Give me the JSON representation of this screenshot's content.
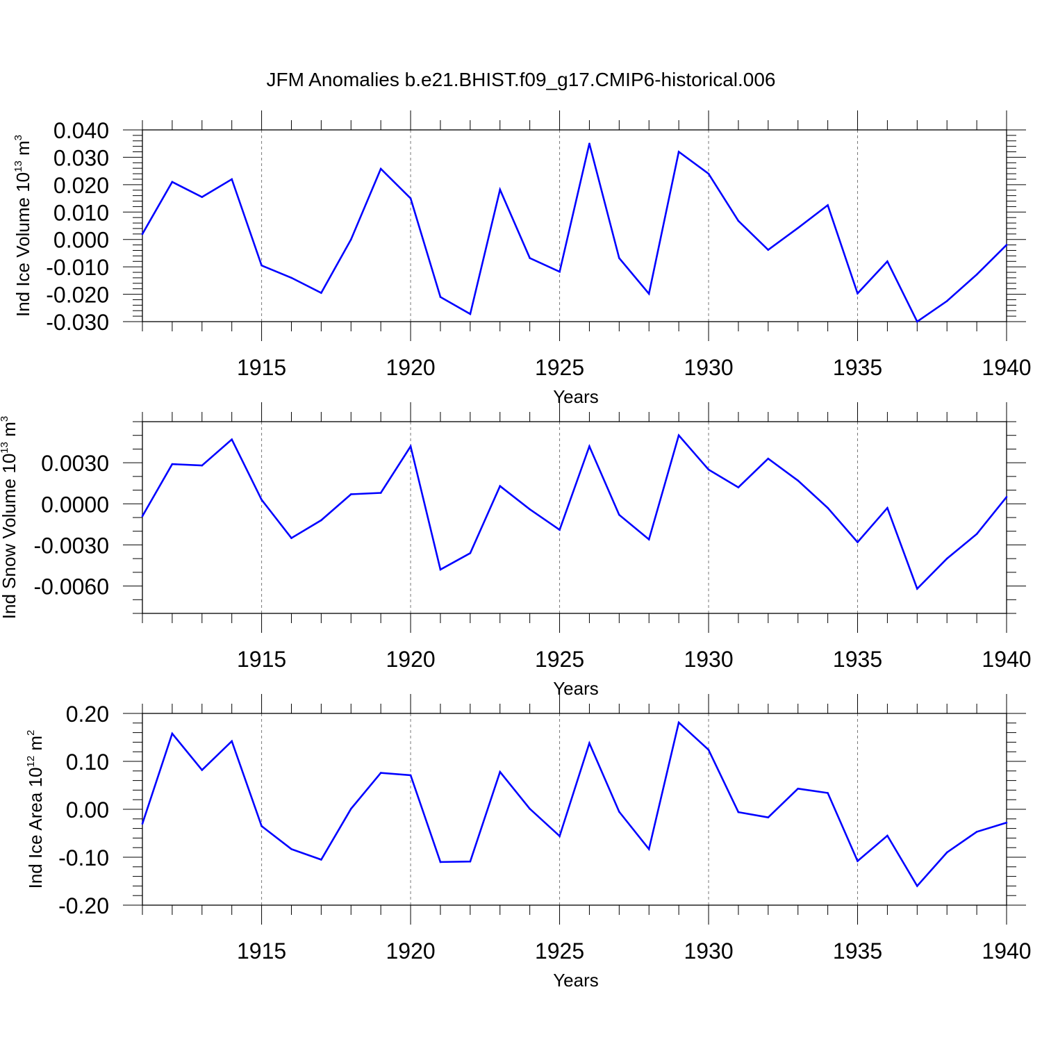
{
  "title": "JFM Anomalies b.e21.BHIST.f09_g17.CMIP6-historical.006",
  "colors": {
    "series": "#0000ff",
    "axis": "#000000",
    "grid": "#777777"
  },
  "chart_data": [
    {
      "type": "line",
      "xlabel": "Years",
      "ylabel": {
        "text": "Ind Ice Volume 10",
        "exp": "13",
        "unit": " m",
        "unit_exp": "3"
      },
      "xlim": [
        1911,
        1940
      ],
      "ylim": [
        -0.03,
        0.04
      ],
      "x_ticks": [
        "1915",
        "1920",
        "1925",
        "1930",
        "1935",
        "1940"
      ],
      "y_ticks": [
        "0.040",
        "0.030",
        "0.020",
        "0.010",
        "0.000",
        "-0.010",
        "-0.020",
        "-0.030"
      ],
      "x": [
        1911,
        1912,
        1913,
        1914,
        1915,
        1916,
        1917,
        1918,
        1919,
        1920,
        1921,
        1922,
        1923,
        1924,
        1925,
        1926,
        1927,
        1928,
        1929,
        1930,
        1931,
        1932,
        1933,
        1934,
        1935,
        1936,
        1937,
        1938,
        1939,
        1940
      ],
      "values": [
        0.002,
        0.021,
        0.0155,
        0.022,
        -0.0095,
        -0.014,
        -0.0195,
        0.0,
        0.0258,
        0.015,
        -0.021,
        -0.0272,
        0.0182,
        -0.0068,
        -0.0118,
        0.035,
        -0.0068,
        -0.0198,
        0.032,
        0.024,
        0.0068,
        -0.0038,
        0.0042,
        0.0125,
        -0.0197,
        -0.008,
        -0.03,
        -0.0225,
        -0.0128,
        -0.002
      ],
      "grid": "dashed vertical at labeled years"
    },
    {
      "type": "line",
      "xlabel": "Years",
      "ylabel": {
        "text": "Ind Snow Volume 10",
        "exp": "13",
        "unit": " m",
        "unit_exp": "3"
      },
      "xlim": [
        1911,
        1940
      ],
      "ylim": [
        -0.008,
        0.006
      ],
      "x_ticks": [
        "1915",
        "1920",
        "1925",
        "1930",
        "1935",
        "1940"
      ],
      "y_ticks": [
        "0.0030",
        "0.0000",
        "-0.0030",
        "-0.0060"
      ],
      "x": [
        1911,
        1912,
        1913,
        1914,
        1915,
        1916,
        1917,
        1918,
        1919,
        1920,
        1921,
        1922,
        1923,
        1924,
        1925,
        1926,
        1927,
        1928,
        1929,
        1930,
        1931,
        1932,
        1933,
        1934,
        1935,
        1936,
        1937,
        1938,
        1939,
        1940
      ],
      "values": [
        -0.0009,
        0.0029,
        0.0028,
        0.0047,
        0.0003,
        -0.0025,
        -0.0012,
        0.0007,
        0.0008,
        0.0042,
        -0.0048,
        -0.0036,
        0.0013,
        -0.0004,
        -0.0019,
        0.0042,
        -0.0008,
        -0.0026,
        0.005,
        0.0025,
        0.0012,
        0.0033,
        0.0017,
        -0.0003,
        -0.0028,
        -0.0003,
        -0.0062,
        -0.004,
        -0.0022,
        0.0005
      ],
      "grid": "dashed vertical at labeled years"
    },
    {
      "type": "line",
      "xlabel": "Years",
      "ylabel": {
        "text": "Ind Ice Area 10",
        "exp": "12",
        "unit": " m",
        "unit_exp": "2"
      },
      "xlim": [
        1911,
        1940
      ],
      "ylim": [
        -0.2,
        0.2
      ],
      "x_ticks": [
        "1915",
        "1920",
        "1925",
        "1930",
        "1935",
        "1940"
      ],
      "y_ticks": [
        "0.20",
        "0.10",
        "0.00",
        "-0.10",
        "-0.20"
      ],
      "x": [
        1911,
        1912,
        1913,
        1914,
        1915,
        1916,
        1917,
        1918,
        1919,
        1920,
        1921,
        1922,
        1923,
        1924,
        1925,
        1926,
        1927,
        1928,
        1929,
        1930,
        1931,
        1932,
        1933,
        1934,
        1935,
        1936,
        1937,
        1938,
        1939,
        1940
      ],
      "values": [
        -0.03,
        0.158,
        0.082,
        0.142,
        -0.035,
        -0.083,
        -0.105,
        0.001,
        0.076,
        0.071,
        -0.11,
        -0.109,
        0.078,
        0.001,
        -0.056,
        0.138,
        -0.005,
        -0.083,
        0.181,
        0.124,
        -0.006,
        -0.017,
        0.043,
        0.034,
        -0.108,
        -0.055,
        -0.16,
        -0.09,
        -0.047,
        -0.028
      ],
      "grid": "dashed vertical at labeled years"
    }
  ]
}
